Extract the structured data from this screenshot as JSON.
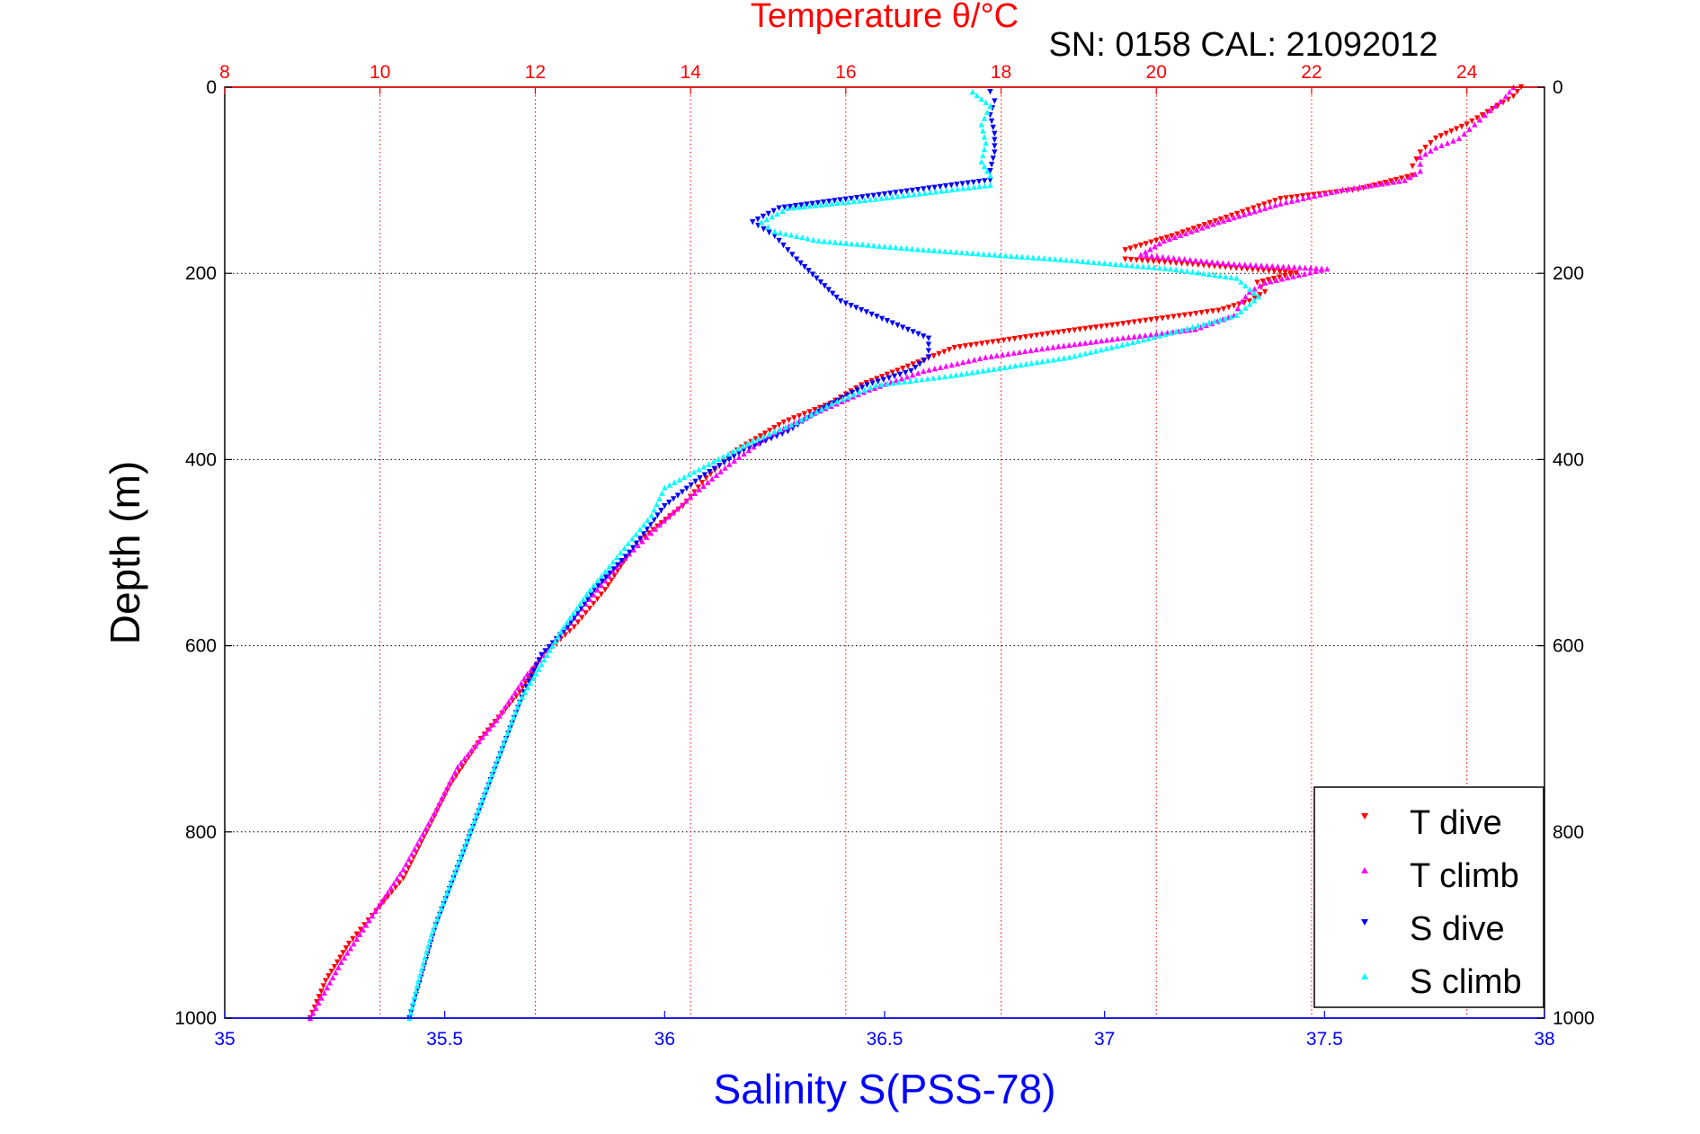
{
  "chart_data": {
    "type": "scatter",
    "title": "Temperature θ/°C",
    "subtitle": "SN: 0158  CAL: 21092012",
    "ylabel": "Depth (m)",
    "xlabel_bottom": "Salinity S(PSS-78)",
    "y_axis": {
      "range": [
        0,
        1000
      ],
      "reversed": true,
      "ticks": [
        0,
        200,
        400,
        600,
        800,
        1000
      ],
      "grid": true
    },
    "x_axis_top": {
      "quantity": "Temperature",
      "range": [
        8,
        25
      ],
      "ticks": [
        8,
        10,
        12,
        14,
        16,
        18,
        20,
        22,
        24
      ],
      "grid": true,
      "color": "#ff0000"
    },
    "x_axis_bottom": {
      "quantity": "Salinity",
      "range": [
        35,
        38
      ],
      "ticks": [
        35,
        35.5,
        36,
        36.5,
        37,
        37.5,
        38
      ],
      "tick_labels": [
        "35",
        "35.5",
        "36",
        "36.5",
        "37",
        "37.5",
        "38"
      ],
      "grid": false,
      "color": "#0000ff"
    },
    "legend": {
      "position": "bottom-right"
    },
    "series": [
      {
        "name": "T dive",
        "axis": "top",
        "color": "#ff0000",
        "marker": "triangle-down",
        "points": [
          [
            24.7,
            0
          ],
          [
            24.6,
            10
          ],
          [
            24.4,
            20
          ],
          [
            24.2,
            30
          ],
          [
            24.0,
            40
          ],
          [
            23.6,
            55
          ],
          [
            23.4,
            70
          ],
          [
            23.3,
            85
          ],
          [
            23.3,
            95
          ],
          [
            22.6,
            110
          ],
          [
            21.6,
            120
          ],
          [
            20.9,
            140
          ],
          [
            20.2,
            160
          ],
          [
            19.6,
            175
          ],
          [
            19.6,
            185
          ],
          [
            20.4,
            190
          ],
          [
            21.8,
            200
          ],
          [
            21.3,
            210
          ],
          [
            21.4,
            220
          ],
          [
            21.2,
            230
          ],
          [
            20.8,
            240
          ],
          [
            19.5,
            255
          ],
          [
            18.6,
            265
          ],
          [
            17.4,
            280
          ],
          [
            16.8,
            300
          ],
          [
            16.2,
            320
          ],
          [
            15.8,
            340
          ],
          [
            15.2,
            360
          ],
          [
            14.6,
            390
          ],
          [
            14.2,
            420
          ],
          [
            13.9,
            450
          ],
          [
            13.3,
            490
          ],
          [
            12.9,
            540
          ],
          [
            12.5,
            580
          ],
          [
            12.1,
            610
          ],
          [
            11.8,
            650
          ],
          [
            11.3,
            700
          ],
          [
            10.9,
            750
          ],
          [
            10.6,
            800
          ],
          [
            10.3,
            850
          ],
          [
            10.0,
            880
          ],
          [
            9.6,
            920
          ],
          [
            9.3,
            960
          ],
          [
            9.1,
            1000
          ]
        ]
      },
      {
        "name": "T climb",
        "axis": "top",
        "color": "#ff00ff",
        "marker": "triangle-up",
        "points": [
          [
            24.6,
            0
          ],
          [
            24.5,
            10
          ],
          [
            24.3,
            25
          ],
          [
            24.1,
            40
          ],
          [
            23.9,
            55
          ],
          [
            23.6,
            65
          ],
          [
            23.4,
            75
          ],
          [
            23.4,
            90
          ],
          [
            23.2,
            100
          ],
          [
            22.4,
            110
          ],
          [
            21.6,
            125
          ],
          [
            20.8,
            145
          ],
          [
            20.1,
            165
          ],
          [
            19.8,
            180
          ],
          [
            21.0,
            190
          ],
          [
            22.2,
            195
          ],
          [
            21.4,
            210
          ],
          [
            21.2,
            220
          ],
          [
            21.1,
            230
          ],
          [
            21.0,
            245
          ],
          [
            20.5,
            260
          ],
          [
            19.5,
            270
          ],
          [
            18.6,
            280
          ],
          [
            17.8,
            290
          ],
          [
            17.0,
            305
          ],
          [
            16.3,
            325
          ],
          [
            15.6,
            350
          ],
          [
            15.0,
            375
          ],
          [
            14.5,
            405
          ],
          [
            14.0,
            440
          ],
          [
            13.6,
            470
          ],
          [
            13.1,
            510
          ],
          [
            12.7,
            550
          ],
          [
            12.3,
            590
          ],
          [
            11.9,
            630
          ],
          [
            11.5,
            680
          ],
          [
            11.0,
            730
          ],
          [
            10.7,
            780
          ],
          [
            10.3,
            840
          ],
          [
            9.9,
            890
          ],
          [
            9.5,
            940
          ],
          [
            9.1,
            1000
          ]
        ]
      },
      {
        "name": "S dive",
        "axis": "bottom",
        "color": "#0000ff",
        "marker": "triangle-down",
        "points": [
          [
            35.42,
            1000
          ],
          [
            35.45,
            950
          ],
          [
            35.48,
            900
          ],
          [
            35.52,
            850
          ],
          [
            35.56,
            800
          ],
          [
            35.6,
            750
          ],
          [
            35.64,
            700
          ],
          [
            35.68,
            650
          ],
          [
            35.72,
            610
          ],
          [
            35.78,
            580
          ],
          [
            35.84,
            540
          ],
          [
            35.92,
            500
          ],
          [
            36.0,
            450
          ],
          [
            36.08,
            420
          ],
          [
            36.18,
            390
          ],
          [
            36.28,
            370
          ],
          [
            36.36,
            345
          ],
          [
            36.46,
            320
          ],
          [
            36.56,
            305
          ],
          [
            36.6,
            290
          ],
          [
            36.6,
            270
          ],
          [
            36.4,
            230
          ],
          [
            36.3,
            185
          ],
          [
            36.25,
            160
          ],
          [
            36.2,
            145
          ],
          [
            36.26,
            130
          ],
          [
            36.5,
            115
          ],
          [
            36.74,
            100
          ],
          [
            36.74,
            90
          ],
          [
            36.75,
            70
          ],
          [
            36.75,
            50
          ],
          [
            36.74,
            30
          ],
          [
            36.75,
            15
          ],
          [
            36.74,
            5
          ]
        ]
      },
      {
        "name": "S climb",
        "axis": "bottom",
        "color": "#00ffff",
        "marker": "triangle-up",
        "points": [
          [
            35.42,
            1000
          ],
          [
            35.44,
            960
          ],
          [
            35.47,
            910
          ],
          [
            35.51,
            860
          ],
          [
            35.55,
            810
          ],
          [
            35.59,
            760
          ],
          [
            35.63,
            710
          ],
          [
            35.67,
            660
          ],
          [
            35.72,
            620
          ],
          [
            35.77,
            580
          ],
          [
            35.83,
            540
          ],
          [
            35.9,
            500
          ],
          [
            35.97,
            460
          ],
          [
            36.0,
            430
          ],
          [
            36.1,
            405
          ],
          [
            36.2,
            380
          ],
          [
            36.3,
            360
          ],
          [
            36.38,
            340
          ],
          [
            36.48,
            320
          ],
          [
            36.65,
            310
          ],
          [
            36.92,
            290
          ],
          [
            37.1,
            270
          ],
          [
            37.3,
            245
          ],
          [
            37.35,
            225
          ],
          [
            37.3,
            205
          ],
          [
            37.15,
            195
          ],
          [
            36.9,
            185
          ],
          [
            36.6,
            175
          ],
          [
            36.35,
            165
          ],
          [
            36.25,
            155
          ],
          [
            36.22,
            145
          ],
          [
            36.28,
            130
          ],
          [
            36.48,
            120
          ],
          [
            36.74,
            105
          ],
          [
            36.74,
            95
          ],
          [
            36.72,
            80
          ],
          [
            36.73,
            60
          ],
          [
            36.72,
            40
          ],
          [
            36.74,
            20
          ],
          [
            36.7,
            5
          ]
        ]
      }
    ]
  }
}
